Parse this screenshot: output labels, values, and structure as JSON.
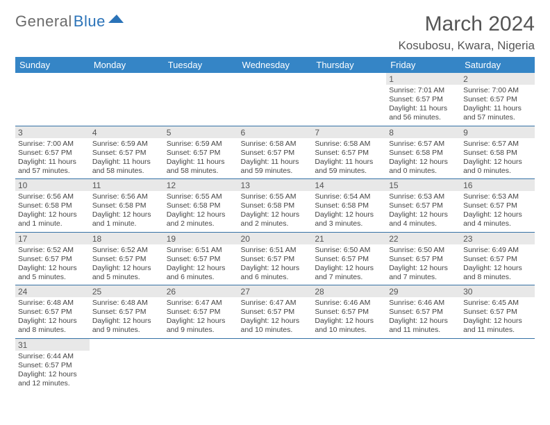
{
  "logo": {
    "general": "General",
    "blue": "Blue"
  },
  "title": "March 2024",
  "location": "Kosubosu, Kwara, Nigeria",
  "colors": {
    "header_bg": "#3585c6",
    "header_text": "#ffffff",
    "daynum_bg": "#e8e8e8",
    "row_border": "#3471a5",
    "logo_blue": "#2b73b8",
    "logo_grey": "#6b6b6b"
  },
  "days_of_week": [
    "Sunday",
    "Monday",
    "Tuesday",
    "Wednesday",
    "Thursday",
    "Friday",
    "Saturday"
  ],
  "weeks": [
    [
      null,
      null,
      null,
      null,
      null,
      {
        "n": "1",
        "sr": "Sunrise: 7:01 AM",
        "ss": "Sunset: 6:57 PM",
        "dl": "Daylight: 11 hours and 56 minutes."
      },
      {
        "n": "2",
        "sr": "Sunrise: 7:00 AM",
        "ss": "Sunset: 6:57 PM",
        "dl": "Daylight: 11 hours and 57 minutes."
      }
    ],
    [
      {
        "n": "3",
        "sr": "Sunrise: 7:00 AM",
        "ss": "Sunset: 6:57 PM",
        "dl": "Daylight: 11 hours and 57 minutes."
      },
      {
        "n": "4",
        "sr": "Sunrise: 6:59 AM",
        "ss": "Sunset: 6:57 PM",
        "dl": "Daylight: 11 hours and 58 minutes."
      },
      {
        "n": "5",
        "sr": "Sunrise: 6:59 AM",
        "ss": "Sunset: 6:57 PM",
        "dl": "Daylight: 11 hours and 58 minutes."
      },
      {
        "n": "6",
        "sr": "Sunrise: 6:58 AM",
        "ss": "Sunset: 6:57 PM",
        "dl": "Daylight: 11 hours and 59 minutes."
      },
      {
        "n": "7",
        "sr": "Sunrise: 6:58 AM",
        "ss": "Sunset: 6:57 PM",
        "dl": "Daylight: 11 hours and 59 minutes."
      },
      {
        "n": "8",
        "sr": "Sunrise: 6:57 AM",
        "ss": "Sunset: 6:58 PM",
        "dl": "Daylight: 12 hours and 0 minutes."
      },
      {
        "n": "9",
        "sr": "Sunrise: 6:57 AM",
        "ss": "Sunset: 6:58 PM",
        "dl": "Daylight: 12 hours and 0 minutes."
      }
    ],
    [
      {
        "n": "10",
        "sr": "Sunrise: 6:56 AM",
        "ss": "Sunset: 6:58 PM",
        "dl": "Daylight: 12 hours and 1 minute."
      },
      {
        "n": "11",
        "sr": "Sunrise: 6:56 AM",
        "ss": "Sunset: 6:58 PM",
        "dl": "Daylight: 12 hours and 1 minute."
      },
      {
        "n": "12",
        "sr": "Sunrise: 6:55 AM",
        "ss": "Sunset: 6:58 PM",
        "dl": "Daylight: 12 hours and 2 minutes."
      },
      {
        "n": "13",
        "sr": "Sunrise: 6:55 AM",
        "ss": "Sunset: 6:58 PM",
        "dl": "Daylight: 12 hours and 2 minutes."
      },
      {
        "n": "14",
        "sr": "Sunrise: 6:54 AM",
        "ss": "Sunset: 6:58 PM",
        "dl": "Daylight: 12 hours and 3 minutes."
      },
      {
        "n": "15",
        "sr": "Sunrise: 6:53 AM",
        "ss": "Sunset: 6:57 PM",
        "dl": "Daylight: 12 hours and 4 minutes."
      },
      {
        "n": "16",
        "sr": "Sunrise: 6:53 AM",
        "ss": "Sunset: 6:57 PM",
        "dl": "Daylight: 12 hours and 4 minutes."
      }
    ],
    [
      {
        "n": "17",
        "sr": "Sunrise: 6:52 AM",
        "ss": "Sunset: 6:57 PM",
        "dl": "Daylight: 12 hours and 5 minutes."
      },
      {
        "n": "18",
        "sr": "Sunrise: 6:52 AM",
        "ss": "Sunset: 6:57 PM",
        "dl": "Daylight: 12 hours and 5 minutes."
      },
      {
        "n": "19",
        "sr": "Sunrise: 6:51 AM",
        "ss": "Sunset: 6:57 PM",
        "dl": "Daylight: 12 hours and 6 minutes."
      },
      {
        "n": "20",
        "sr": "Sunrise: 6:51 AM",
        "ss": "Sunset: 6:57 PM",
        "dl": "Daylight: 12 hours and 6 minutes."
      },
      {
        "n": "21",
        "sr": "Sunrise: 6:50 AM",
        "ss": "Sunset: 6:57 PM",
        "dl": "Daylight: 12 hours and 7 minutes."
      },
      {
        "n": "22",
        "sr": "Sunrise: 6:50 AM",
        "ss": "Sunset: 6:57 PM",
        "dl": "Daylight: 12 hours and 7 minutes."
      },
      {
        "n": "23",
        "sr": "Sunrise: 6:49 AM",
        "ss": "Sunset: 6:57 PM",
        "dl": "Daylight: 12 hours and 8 minutes."
      }
    ],
    [
      {
        "n": "24",
        "sr": "Sunrise: 6:48 AM",
        "ss": "Sunset: 6:57 PM",
        "dl": "Daylight: 12 hours and 8 minutes."
      },
      {
        "n": "25",
        "sr": "Sunrise: 6:48 AM",
        "ss": "Sunset: 6:57 PM",
        "dl": "Daylight: 12 hours and 9 minutes."
      },
      {
        "n": "26",
        "sr": "Sunrise: 6:47 AM",
        "ss": "Sunset: 6:57 PM",
        "dl": "Daylight: 12 hours and 9 minutes."
      },
      {
        "n": "27",
        "sr": "Sunrise: 6:47 AM",
        "ss": "Sunset: 6:57 PM",
        "dl": "Daylight: 12 hours and 10 minutes."
      },
      {
        "n": "28",
        "sr": "Sunrise: 6:46 AM",
        "ss": "Sunset: 6:57 PM",
        "dl": "Daylight: 12 hours and 10 minutes."
      },
      {
        "n": "29",
        "sr": "Sunrise: 6:46 AM",
        "ss": "Sunset: 6:57 PM",
        "dl": "Daylight: 12 hours and 11 minutes."
      },
      {
        "n": "30",
        "sr": "Sunrise: 6:45 AM",
        "ss": "Sunset: 6:57 PM",
        "dl": "Daylight: 12 hours and 11 minutes."
      }
    ],
    [
      {
        "n": "31",
        "sr": "Sunrise: 6:44 AM",
        "ss": "Sunset: 6:57 PM",
        "dl": "Daylight: 12 hours and 12 minutes."
      },
      null,
      null,
      null,
      null,
      null,
      null
    ]
  ]
}
